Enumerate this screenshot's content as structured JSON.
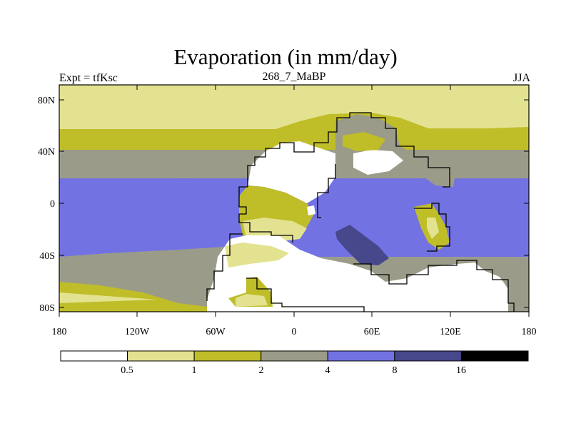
{
  "header": {
    "title": "Evaporation (in mm/day)",
    "left_label": "Expt = tfKsc",
    "center_label": "268_7_MaBP",
    "right_label": "JJA"
  },
  "axes": {
    "y_ticks": [
      "80N",
      "40N",
      "0",
      "40S",
      "80S"
    ],
    "x_ticks": [
      "180",
      "120W",
      "60W",
      "0",
      "60E",
      "120E",
      "180"
    ]
  },
  "colorbar": {
    "labels": [
      "0.5",
      "1",
      "2",
      "4",
      "8",
      "16"
    ],
    "colors": [
      "#ffffff",
      "#e3e290",
      "#bfbd28",
      "#9b9b89",
      "#7272e3",
      "#47478c",
      "#000000"
    ]
  },
  "chart_data": {
    "type": "heatmap",
    "title": "Evaporation (in mm/day)",
    "variable": "Evaporation",
    "units": "mm/day",
    "experiment": "tfKsc",
    "run": "268_7_MaBP",
    "season": "JJA",
    "xlim": [
      -180,
      180
    ],
    "ylim": [
      -90,
      90
    ],
    "contour_levels": [
      0.5,
      1,
      2,
      4,
      8,
      16
    ],
    "land_outline_color": "#000000"
  }
}
